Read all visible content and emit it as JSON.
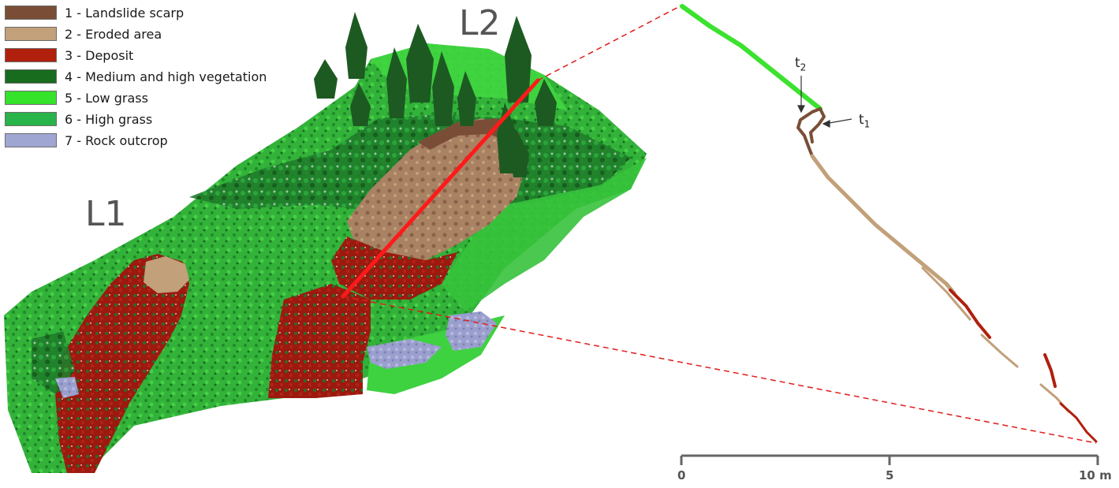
{
  "legend": {
    "items": [
      {
        "label": "1 - Landslide scarp",
        "color": "#7a4e36"
      },
      {
        "label": "2 - Eroded area",
        "color": "#c2a07a"
      },
      {
        "label": "3 - Deposit",
        "color": "#b0200d"
      },
      {
        "label": "4 - Medium and high vegetation",
        "color": "#186c1e"
      },
      {
        "label": "5 - Low grass",
        "color": "#36e32b"
      },
      {
        "label": "6 - High grass",
        "color": "#28b44a"
      },
      {
        "label": "7 - Rock outcrop",
        "color": "#a0a6d2"
      }
    ]
  },
  "landslides": {
    "l1": "L1",
    "l2": "L2"
  },
  "profile": {
    "t1_base": "t",
    "t1_sub": "1",
    "t2_base": "t",
    "t2_sub": "2",
    "section_line_color": "#ff1a1a",
    "projection_line_color": "#e21b1b"
  },
  "scale_bar": {
    "ticks": [
      "0",
      "5",
      "10 m"
    ]
  }
}
